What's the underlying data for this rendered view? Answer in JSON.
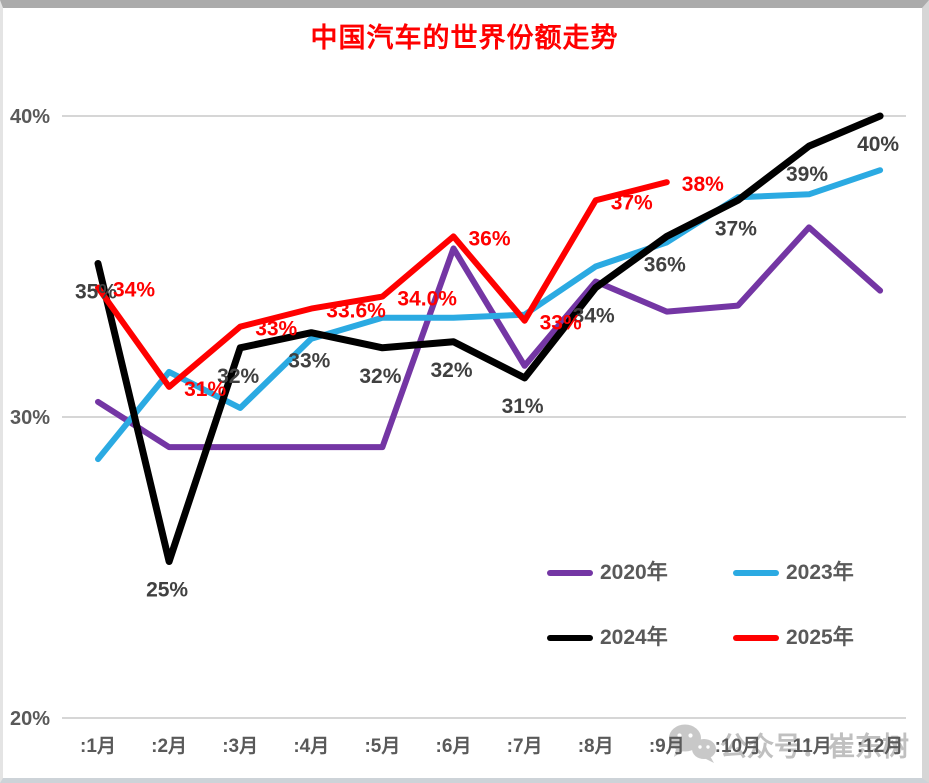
{
  "title": "中国汽车的世界份额走势",
  "title_color": "#FF0000",
  "watermark": {
    "icon": "wechat-icon",
    "text": "公众号：崔东树"
  },
  "chart_data": {
    "type": "line",
    "title": "中国汽车的世界份额走势",
    "x_categories": [
      ":1月",
      ":2月",
      ":3月",
      ":4月",
      ":5月",
      ":6月",
      ":7月",
      ":8月",
      ":9月",
      ":10月",
      ":11月",
      ":12月"
    ],
    "y_axis": {
      "unit": "%",
      "range": [
        20,
        41
      ],
      "gridlines": true,
      "ticks": [
        {
          "value": 40,
          "label": "40%"
        },
        {
          "value": 30,
          "label": "30%"
        },
        {
          "value": 20,
          "label": "20%"
        }
      ]
    },
    "legend_position": "inside-bottom-right",
    "series": [
      {
        "name": "2020年",
        "color": "#7436A4",
        "values": [
          30.5,
          29,
          29,
          29,
          29,
          35.6,
          31.7,
          34.5,
          33.5,
          33.7,
          36.3,
          34.2
        ],
        "point_labels": null
      },
      {
        "name": "2023年",
        "color": "#2BAAE2",
        "values": [
          28.6,
          31.5,
          30.3,
          32.6,
          33.3,
          33.3,
          33.4,
          35,
          35.8,
          37.3,
          37.4,
          38.2
        ],
        "point_labels": null
      },
      {
        "name": "2024年",
        "color": "#000000",
        "values": [
          35.1,
          25.2,
          32.3,
          32.8,
          32.3,
          32.5,
          31.3,
          34.3,
          36,
          37.2,
          39,
          40
        ],
        "point_labels": [
          "35%",
          "25%",
          "32%",
          "33%",
          "32%",
          "32%",
          "31%",
          "34%",
          "36%",
          "37%",
          "39%",
          "40%"
        ],
        "label_color": "#404040",
        "label_pos": "below"
      },
      {
        "name": "2025年",
        "color": "#FF0000",
        "values": [
          34.3,
          31,
          33,
          33.6,
          34,
          36,
          33.2,
          37.2,
          37.8
        ],
        "point_labels": [
          "34%",
          "31%",
          "33%",
          "33.6%",
          "34.0%",
          "36%",
          "33%",
          "37%",
          "38%"
        ],
        "label_color": "#FF0000",
        "label_pos": "right"
      }
    ]
  }
}
